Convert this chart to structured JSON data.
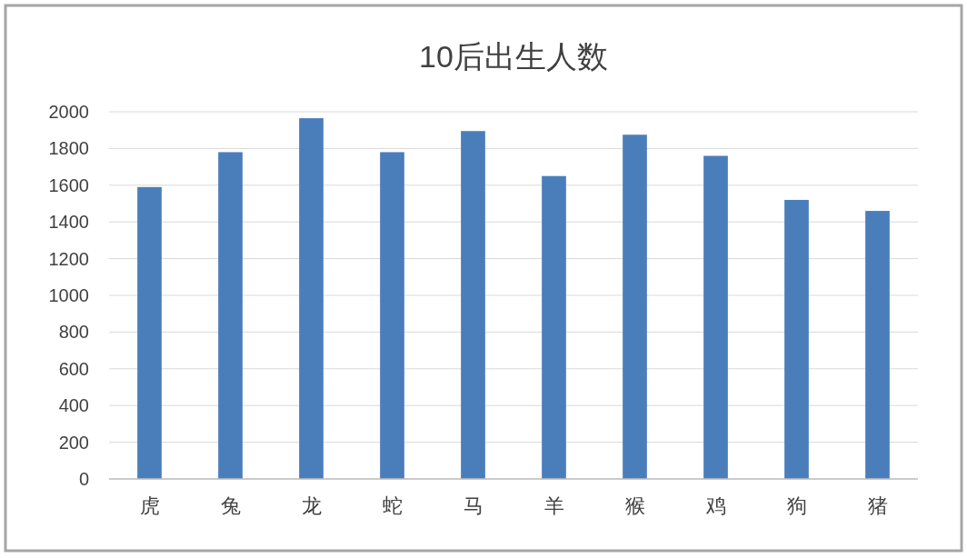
{
  "chart_data": {
    "type": "bar",
    "title": "10后出生人数",
    "categories": [
      "虎",
      "兔",
      "龙",
      "蛇",
      "马",
      "羊",
      "猴",
      "鸡",
      "狗",
      "猪"
    ],
    "values": [
      1590,
      1780,
      1965,
      1780,
      1895,
      1650,
      1875,
      1760,
      1520,
      1460
    ],
    "color": "#4a7ebb",
    "ylim": [
      0,
      2000
    ],
    "yticks": [
      0,
      200,
      400,
      600,
      800,
      1000,
      1200,
      1400,
      1600,
      1800,
      2000
    ],
    "grid": "y"
  }
}
